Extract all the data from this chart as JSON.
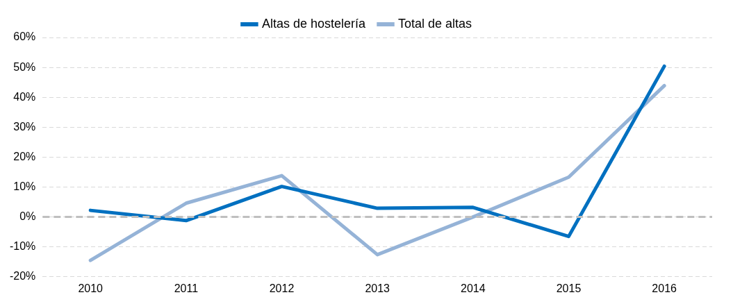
{
  "chart_data": {
    "type": "line",
    "categories": [
      "2010",
      "2011",
      "2012",
      "2013",
      "2014",
      "2015",
      "2016"
    ],
    "series": [
      {
        "name": "Altas de hostelería",
        "color": "#0070c0",
        "values": [
          2.2,
          -1.2,
          10.2,
          2.9,
          3.2,
          -6.5,
          50.4
        ]
      },
      {
        "name": "Total de altas",
        "color": "#95b3d7",
        "values": [
          -14.5,
          4.6,
          13.8,
          -12.6,
          0,
          13.3,
          43.9
        ]
      }
    ],
    "ylim": [
      -20,
      60
    ],
    "yticks": [
      {
        "value": -20,
        "label": "-20%"
      },
      {
        "value": -10,
        "label": "-10%"
      },
      {
        "value": 0,
        "label": "0%"
      },
      {
        "value": 10,
        "label": "10%"
      },
      {
        "value": 20,
        "label": "20%"
      },
      {
        "value": 30,
        "label": "30%"
      },
      {
        "value": 40,
        "label": "40%"
      },
      {
        "value": 50,
        "label": "50%"
      },
      {
        "value": 60,
        "label": "60%"
      }
    ],
    "ref_lines": [
      {
        "axis": "y",
        "value": 0,
        "color": "#bfbfbf",
        "line_style": "dashed"
      }
    ],
    "grid": "y",
    "legend": "top",
    "marker": "none",
    "line_style": "solid"
  }
}
